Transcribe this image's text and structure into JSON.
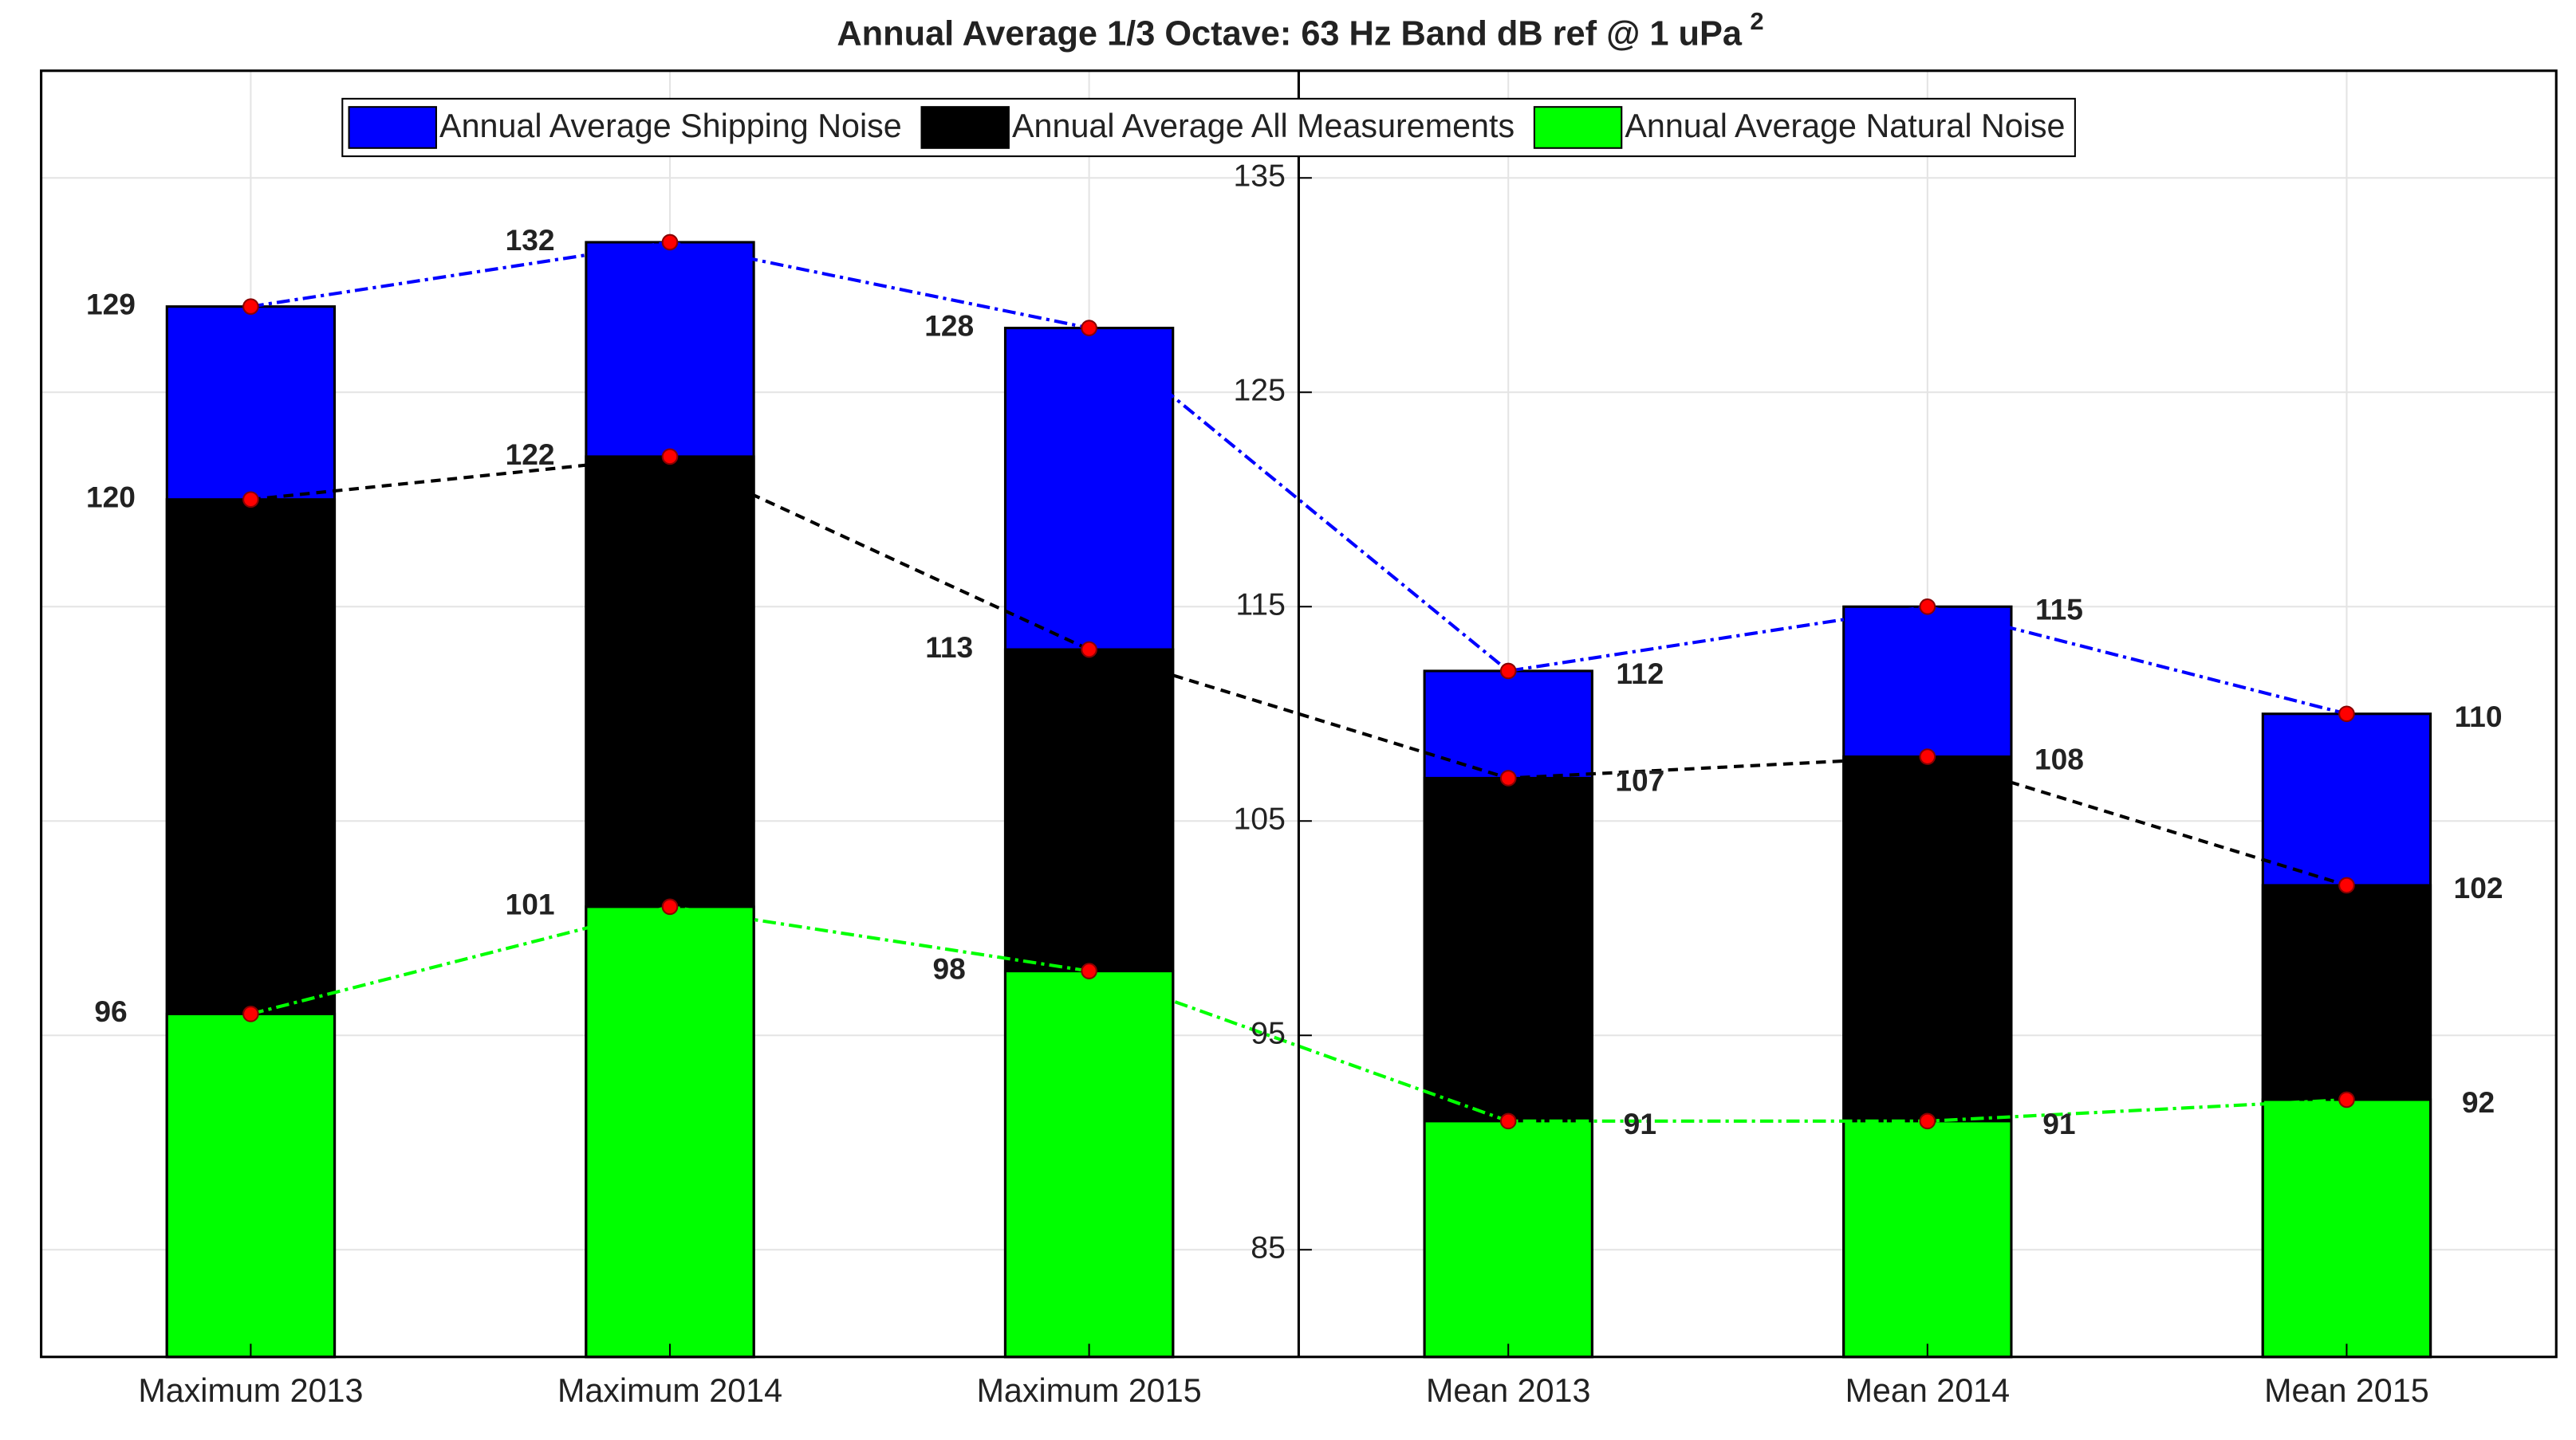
{
  "chart_data": {
    "type": "bar",
    "title": "Annual Average 1/3 Octave: 63 Hz Band dB ref @ 1 uPa",
    "title_superscript": "2",
    "categories": [
      "Maximum 2013",
      "Maximum 2014",
      "Maximum 2015",
      "Mean 2013",
      "Mean 2014",
      "Mean 2015"
    ],
    "series": [
      {
        "name": "Annual Average Shipping Noise",
        "color": "#0000ff",
        "values": [
          129,
          132,
          128,
          112,
          115,
          110
        ]
      },
      {
        "name": "Annual Average All Measurements",
        "color": "#000000",
        "values": [
          120,
          122,
          113,
          107,
          108,
          102
        ]
      },
      {
        "name": "Annual Average Natural Noise",
        "color": "#00ff00",
        "values": [
          96,
          101,
          98,
          91,
          91,
          92
        ]
      }
    ],
    "ylim": [
      80,
      140
    ],
    "yticks": [
      85,
      95,
      105,
      115,
      125,
      135
    ],
    "grid": true,
    "legend": "top"
  }
}
